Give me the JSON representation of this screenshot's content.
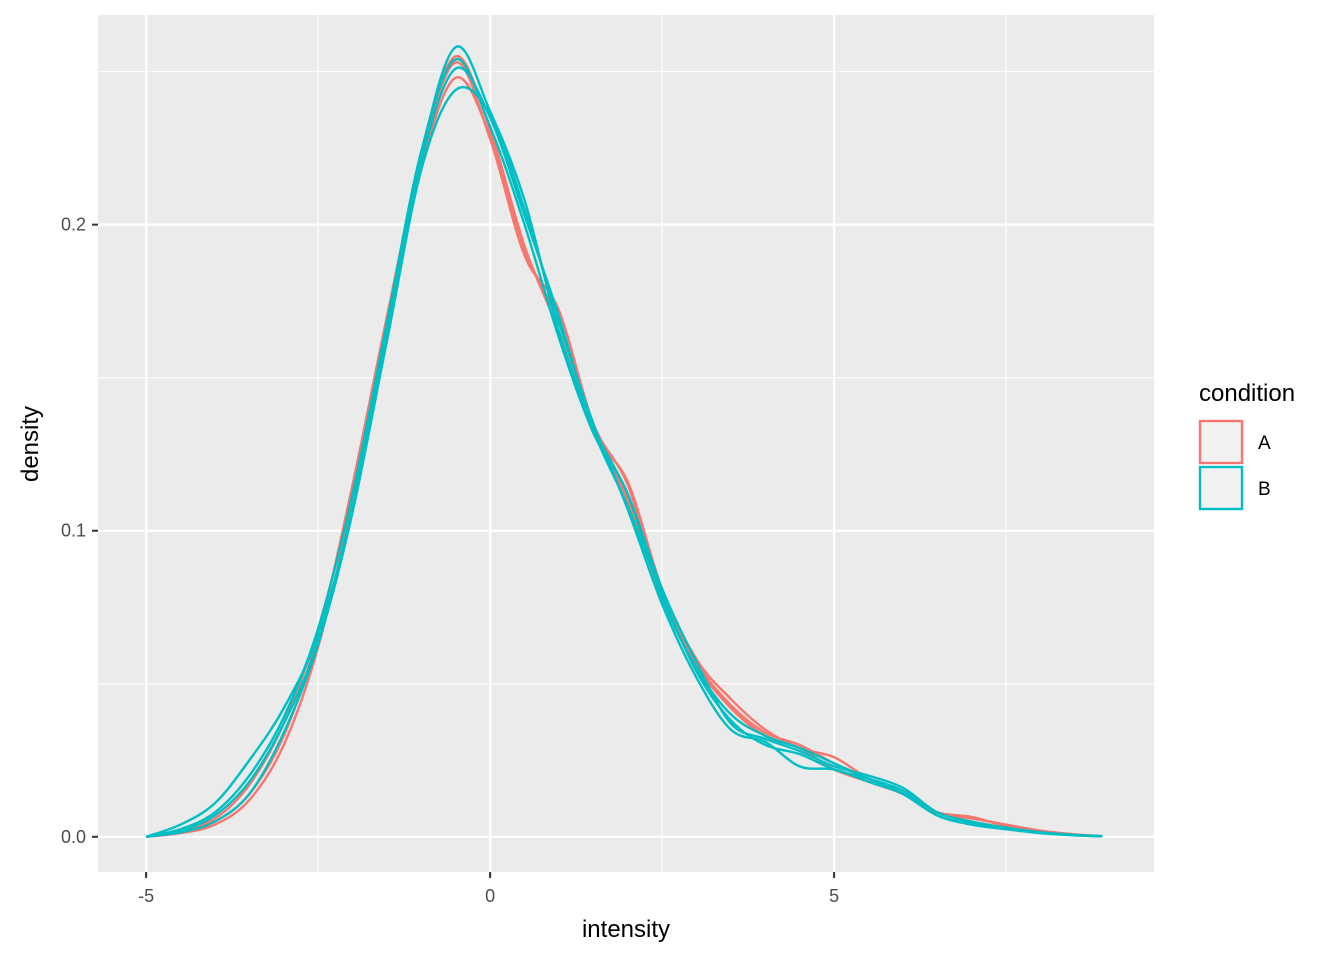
{
  "chart_data": {
    "type": "line",
    "xlabel": "intensity",
    "ylabel": "density",
    "xlim": [
      -5.7,
      9.65
    ],
    "ylim": [
      -0.0115,
      0.2685
    ],
    "x_ticks": [
      -5,
      0,
      5
    ],
    "x_tick_labels": [
      "-5",
      "0",
      "5"
    ],
    "x_minor_gridlines": [
      -2.5,
      2.5,
      7.5
    ],
    "y_ticks": [
      0.0,
      0.1,
      0.2
    ],
    "y_tick_labels": [
      "0.0",
      "0.1",
      "0.2"
    ],
    "y_minor_gridlines": [
      0.05,
      0.15,
      0.25
    ],
    "grid": true,
    "background": "#ebebeb",
    "legend": {
      "title": "condition",
      "position": "right",
      "entries": [
        {
          "label": "A",
          "color": "#F8766D"
        },
        {
          "label": "B",
          "color": "#00BFC4"
        }
      ]
    },
    "series": [
      {
        "group": "A",
        "color": "#F8766D",
        "x": [
          -5,
          -4.5,
          -4,
          -3.5,
          -3,
          -2.5,
          -2,
          -1.5,
          -1,
          -0.5,
          0,
          0.5,
          1,
          1.5,
          2,
          2.5,
          3,
          3.5,
          4,
          4.5,
          5,
          5.5,
          6,
          6.5,
          7,
          7.5,
          8,
          8.5,
          8.9
        ],
        "y": [
          0.0,
          0.0015,
          0.005,
          0.014,
          0.033,
          0.066,
          0.115,
          0.17,
          0.222,
          0.253,
          0.228,
          0.19,
          0.172,
          0.135,
          0.115,
          0.08,
          0.057,
          0.043,
          0.034,
          0.03,
          0.024,
          0.019,
          0.015,
          0.008,
          0.006,
          0.004,
          0.002,
          0.0008,
          0.0002
        ]
      },
      {
        "group": "A",
        "color": "#F8766D",
        "x": [
          -5,
          -4.5,
          -4,
          -3.5,
          -3,
          -2.5,
          -2,
          -1.5,
          -1,
          -0.5,
          0,
          0.5,
          1,
          1.5,
          2,
          2.5,
          3,
          3.5,
          4,
          4.5,
          5,
          5.5,
          6,
          6.5,
          7,
          7.5,
          8,
          8.5,
          8.9
        ],
        "y": [
          0.0,
          0.002,
          0.006,
          0.017,
          0.037,
          0.068,
          0.112,
          0.166,
          0.219,
          0.248,
          0.229,
          0.192,
          0.168,
          0.133,
          0.11,
          0.078,
          0.056,
          0.042,
          0.033,
          0.029,
          0.022,
          0.018,
          0.014,
          0.008,
          0.005,
          0.003,
          0.0015,
          0.0006,
          0.0002
        ]
      },
      {
        "group": "A",
        "color": "#F8766D",
        "x": [
          -5,
          -4.5,
          -4,
          -3.5,
          -3,
          -2.5,
          -2,
          -1.5,
          -1,
          -0.5,
          0,
          0.5,
          1,
          1.5,
          2,
          2.5,
          3,
          3.5,
          4,
          4.5,
          5,
          5.5,
          6,
          6.5,
          7,
          7.5,
          8,
          8.5,
          8.9
        ],
        "y": [
          0.0,
          0.0012,
          0.004,
          0.012,
          0.03,
          0.062,
          0.11,
          0.168,
          0.224,
          0.255,
          0.231,
          0.193,
          0.165,
          0.132,
          0.116,
          0.081,
          0.058,
          0.045,
          0.035,
          0.029,
          0.026,
          0.019,
          0.014,
          0.008,
          0.0065,
          0.0035,
          0.0018,
          0.0007,
          0.0002
        ]
      },
      {
        "group": "B",
        "color": "#00BFC4",
        "x": [
          -5,
          -4.5,
          -4,
          -3.5,
          -3,
          -2.5,
          -2,
          -1.5,
          -1,
          -0.5,
          0,
          0.5,
          1,
          1.5,
          2,
          2.5,
          3,
          3.5,
          4,
          4.5,
          5,
          5.5,
          6,
          6.5,
          7,
          7.5,
          8,
          8.5,
          8.9
        ],
        "y": [
          0.0,
          0.0025,
          0.008,
          0.02,
          0.039,
          0.068,
          0.112,
          0.168,
          0.224,
          0.254,
          0.232,
          0.2,
          0.163,
          0.132,
          0.112,
          0.078,
          0.055,
          0.04,
          0.033,
          0.029,
          0.024,
          0.019,
          0.014,
          0.007,
          0.004,
          0.0025,
          0.0013,
          0.0005,
          0.0002
        ]
      },
      {
        "group": "B",
        "color": "#00BFC4",
        "x": [
          -5,
          -4.5,
          -4,
          -3.5,
          -3,
          -2.5,
          -2,
          -1.5,
          -1,
          -0.5,
          0,
          0.5,
          1,
          1.5,
          2,
          2.5,
          3,
          3.5,
          4,
          4.5,
          5,
          5.5,
          6,
          6.5,
          7,
          7.5,
          8,
          8.5,
          8.9
        ],
        "y": [
          0.0,
          0.004,
          0.011,
          0.025,
          0.042,
          0.066,
          0.107,
          0.162,
          0.218,
          0.244,
          0.236,
          0.205,
          0.168,
          0.135,
          0.107,
          0.076,
          0.052,
          0.035,
          0.031,
          0.023,
          0.022,
          0.018,
          0.014,
          0.007,
          0.004,
          0.0025,
          0.0012,
          0.0005,
          0.0002
        ]
      },
      {
        "group": "B",
        "color": "#00BFC4",
        "x": [
          -5,
          -4.5,
          -4,
          -3.5,
          -3,
          -2.5,
          -2,
          -1.5,
          -1,
          -0.5,
          0,
          0.5,
          1,
          1.5,
          2,
          2.5,
          3,
          3.5,
          4,
          4.5,
          5,
          5.5,
          6,
          6.5,
          7,
          7.5,
          8,
          8.5,
          8.9
        ],
        "y": [
          0.0,
          0.0015,
          0.005,
          0.014,
          0.034,
          0.063,
          0.106,
          0.163,
          0.223,
          0.258,
          0.237,
          0.208,
          0.165,
          0.134,
          0.112,
          0.081,
          0.057,
          0.037,
          0.032,
          0.028,
          0.023,
          0.02,
          0.016,
          0.008,
          0.005,
          0.003,
          0.0015,
          0.0006,
          0.0002
        ]
      },
      {
        "group": "B",
        "color": "#00BFC4",
        "x": [
          -5,
          -4.5,
          -4,
          -3.5,
          -3,
          -2.5,
          -2,
          -1.5,
          -1,
          -0.5,
          0,
          0.5,
          1,
          1.5,
          2,
          2.5,
          3,
          3.5,
          4,
          4.5,
          5,
          5.5,
          6,
          6.5,
          7,
          7.5,
          8,
          8.5,
          8.9
        ],
        "y": [
          0.0,
          0.002,
          0.007,
          0.018,
          0.037,
          0.064,
          0.108,
          0.166,
          0.221,
          0.251,
          0.235,
          0.203,
          0.17,
          0.133,
          0.108,
          0.079,
          0.054,
          0.038,
          0.03,
          0.027,
          0.022,
          0.019,
          0.015,
          0.007,
          0.0045,
          0.0028,
          0.0014,
          0.0005,
          0.0002
        ]
      }
    ]
  }
}
